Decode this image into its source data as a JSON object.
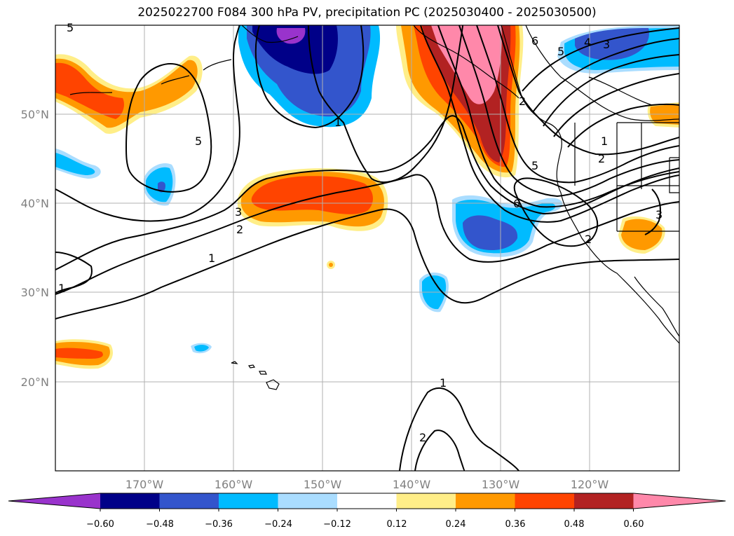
{
  "title": "2025022700 F084 300 hPa PV, precipitation PC (2025030400 - 2025030500)",
  "lat_labels": [
    "50°N",
    "40°N",
    "30°N",
    "20°N"
  ],
  "lon_labels": [
    "170°W",
    "160°W",
    "150°W",
    "140°W",
    "130°W",
    "120°W"
  ],
  "contour_labels": [
    "5",
    "5",
    "3",
    "2",
    "1",
    "1",
    "1",
    "2",
    "4",
    "3",
    "5",
    "1",
    "2",
    "5",
    "6",
    "2",
    "3",
    "6",
    "1",
    "2"
  ],
  "colorbar": {
    "tick_labels": [
      "−0.60",
      "−0.48",
      "−0.36",
      "−0.24",
      "−0.12",
      "0.12",
      "0.24",
      "0.36",
      "0.48",
      "0.60"
    ],
    "colors": [
      "#9933cc",
      "#000088",
      "#3355cc",
      "#00bbff",
      "#aaddff",
      "#ffffff",
      "#ffee88",
      "#ff9900",
      "#ff4400",
      "#b22222",
      "#ff88aa"
    ]
  }
}
